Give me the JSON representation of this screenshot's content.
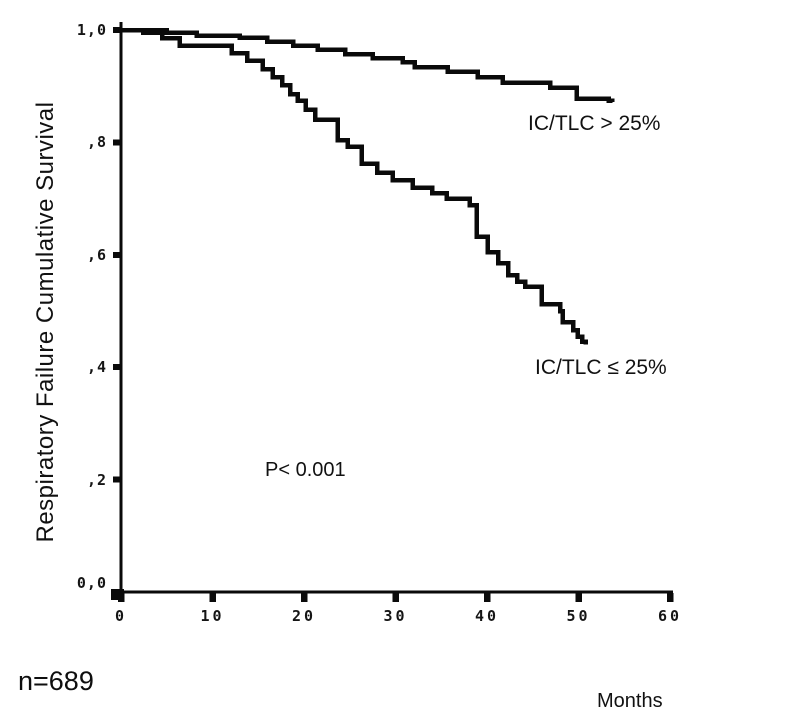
{
  "figure": {
    "n_label": "n=689"
  },
  "chart_data": {
    "type": "line",
    "variant": "kaplan_meier_step",
    "title": "",
    "xlabel": "Months",
    "ylabel": "Respiratory Failure Cumulative Survival",
    "x_range": [
      0,
      60
    ],
    "y_range": [
      0,
      1.0
    ],
    "x_ticks": [
      0,
      10,
      20,
      30,
      40,
      50,
      60
    ],
    "y_ticks": [
      {
        "value": 0,
        "label": "0,0"
      },
      {
        "value": 0.2,
        "label": ",2"
      },
      {
        "value": 0.4,
        "label": ",4"
      },
      {
        "value": 0.6,
        "label": ",6"
      },
      {
        "value": 0.8,
        "label": ",8"
      },
      {
        "value": 1.0,
        "label": "1,0"
      }
    ],
    "grid": false,
    "legend_position": "inline-annotations",
    "line_color": "#0a0a0a",
    "p_value": "P< 0.001",
    "series": [
      {
        "name": "IC/TLC > 25%",
        "points": [
          [
            0,
            1.0
          ],
          [
            5,
            0.995
          ],
          [
            8.3,
            0.99
          ],
          [
            13,
            0.986
          ],
          [
            16,
            0.979
          ],
          [
            18.8,
            0.972
          ],
          [
            21.5,
            0.965
          ],
          [
            24.5,
            0.957
          ],
          [
            27.5,
            0.95
          ],
          [
            30.8,
            0.943
          ],
          [
            32.1,
            0.934
          ],
          [
            35.7,
            0.926
          ],
          [
            39,
            0.916
          ],
          [
            41.7,
            0.906
          ],
          [
            46.9,
            0.897
          ],
          [
            49.8,
            0.878
          ],
          [
            53.3,
            0.874
          ],
          [
            53.7,
            0.872
          ]
        ]
      },
      {
        "name": "IC/TLC ≤ 25%",
        "points": [
          [
            0,
            1.0
          ],
          [
            2.4,
            0.995
          ],
          [
            4.5,
            0.985
          ],
          [
            6.4,
            0.972
          ],
          [
            12.1,
            0.959
          ],
          [
            13.8,
            0.945
          ],
          [
            15.5,
            0.93
          ],
          [
            16.6,
            0.916
          ],
          [
            17.6,
            0.902
          ],
          [
            18.5,
            0.886
          ],
          [
            19.3,
            0.874
          ],
          [
            20.2,
            0.858
          ],
          [
            21.2,
            0.84
          ],
          [
            23.7,
            0.804
          ],
          [
            24.8,
            0.792
          ],
          [
            26.3,
            0.762
          ],
          [
            28,
            0.746
          ],
          [
            29.7,
            0.733
          ],
          [
            31.9,
            0.719
          ],
          [
            34,
            0.71
          ],
          [
            35.6,
            0.7
          ],
          [
            38.1,
            0.688
          ],
          [
            38.9,
            0.632
          ],
          [
            40.1,
            0.605
          ],
          [
            41.2,
            0.585
          ],
          [
            42.3,
            0.564
          ],
          [
            43.3,
            0.552
          ],
          [
            44.2,
            0.543
          ],
          [
            46,
            0.512
          ],
          [
            48,
            0.5
          ],
          [
            48.3,
            0.48
          ],
          [
            49.4,
            0.466
          ],
          [
            49.9,
            0.454
          ],
          [
            50.4,
            0.445
          ],
          [
            50.8,
            0.44
          ]
        ]
      }
    ]
  }
}
